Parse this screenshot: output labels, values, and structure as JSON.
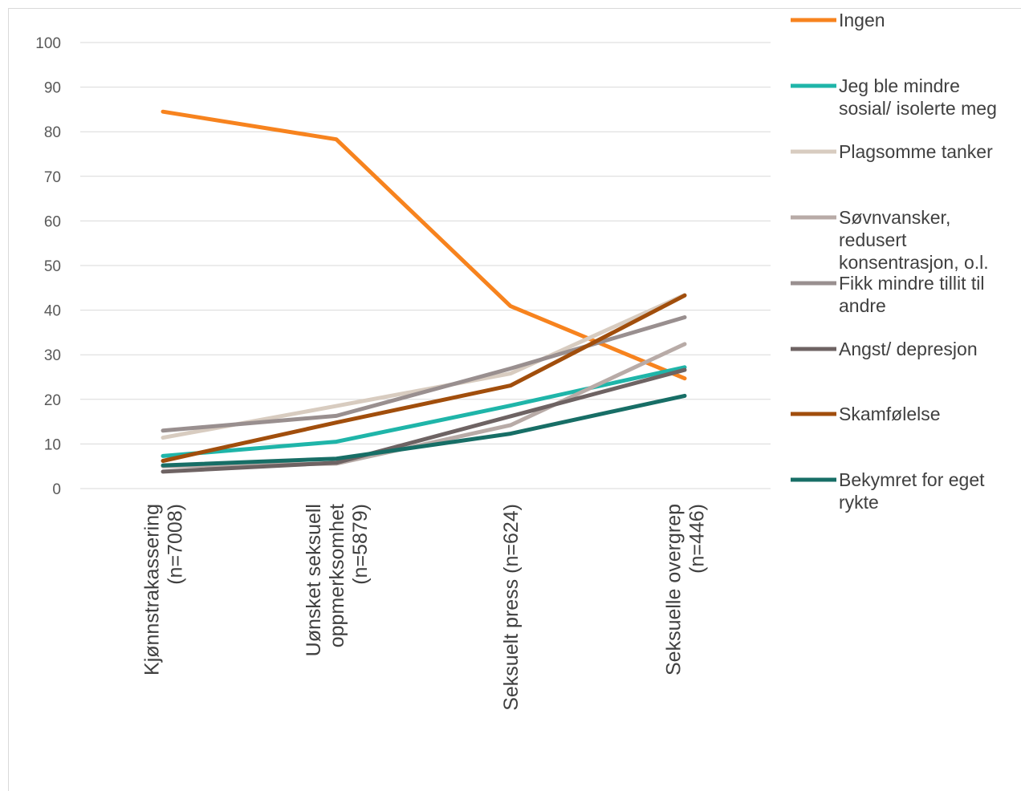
{
  "chart_data": {
    "type": "line",
    "categories": [
      [
        "Kjønnstrakassering",
        "(n=7008)"
      ],
      [
        "Uønsket seksuell",
        "oppmerksomhet",
        "(n=5879)"
      ],
      [
        "Seksuelt press (n=624)"
      ],
      [
        "Seksuelle overgrep",
        "(n=446)"
      ]
    ],
    "ylim": [
      0,
      100
    ],
    "yticks": [
      "0",
      "10",
      "20",
      "30",
      "40",
      "50",
      "60",
      "70",
      "80",
      "90",
      "100"
    ],
    "grid": true,
    "legend_position": "right",
    "series": [
      {
        "name": [
          "Ingen"
        ],
        "color": "#F7831E",
        "values": [
          84.5,
          78.3,
          40.9,
          24.7
        ]
      },
      {
        "name": [
          "Jeg ble mindre",
          "sosial/ isolerte meg"
        ],
        "color": "#1FB5A9",
        "values": [
          7.3,
          10.5,
          18.6,
          27.2
        ]
      },
      {
        "name": [
          "Plagsomme tanker"
        ],
        "color": "#D8CCC0",
        "values": [
          11.4,
          18.5,
          25.8,
          43.4
        ]
      },
      {
        "name": [
          "Søvnvansker,",
          "redusert",
          "konsentrasjon, o.l."
        ],
        "color": "#B8ABA7",
        "values": [
          5.0,
          5.6,
          14.2,
          32.4
        ]
      },
      {
        "name": [
          "Fikk mindre tillit til",
          "andre"
        ],
        "color": "#998F8F",
        "values": [
          13.0,
          16.3,
          26.9,
          38.4
        ]
      },
      {
        "name": [
          "Angst/ depresjon"
        ],
        "color": "#6E6363",
        "values": [
          3.8,
          5.8,
          16.2,
          26.6
        ]
      },
      {
        "name": [
          "Skamfølelse"
        ],
        "color": "#A14E0C",
        "values": [
          6.2,
          14.8,
          23.1,
          43.3
        ]
      },
      {
        "name": [
          "Bekymret for eget",
          "rykte"
        ],
        "color": "#176E66",
        "values": [
          5.2,
          6.7,
          12.3,
          20.8
        ]
      }
    ]
  }
}
